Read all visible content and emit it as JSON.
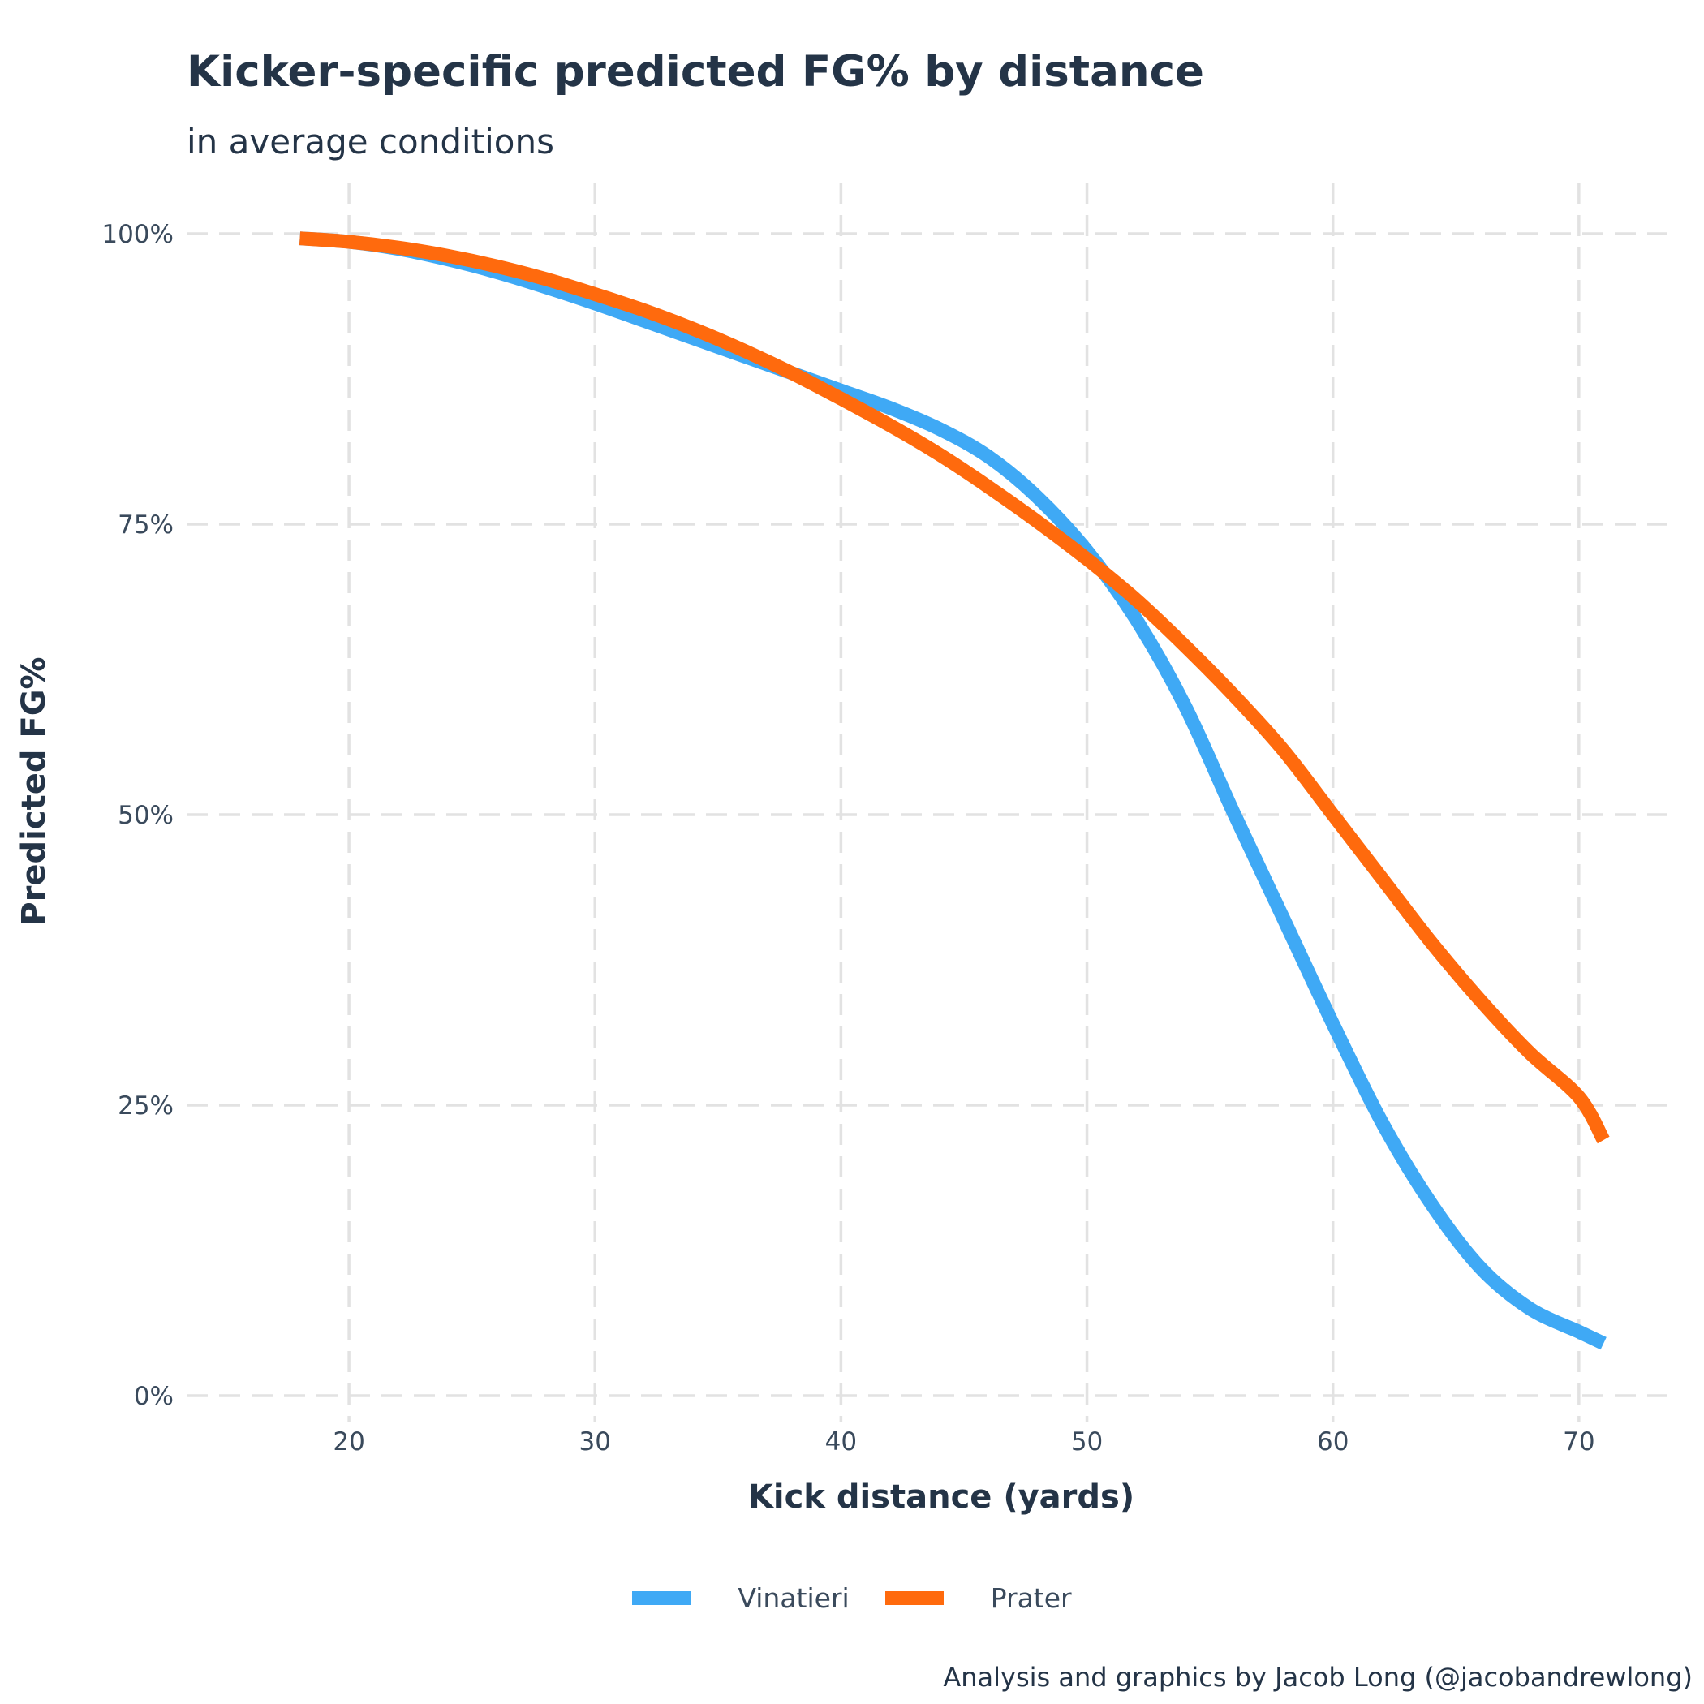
{
  "title": "Kicker-specific predicted FG% by distance",
  "subtitle": "in average conditions",
  "caption": "Analysis and graphics by Jacob Long (@jacobandrewlong)",
  "colors": {
    "Vinatieri": "#3FA9F5",
    "Prater": "#FF6A0D",
    "grid": "#E2E2E2",
    "text": "#243447"
  },
  "chart_data": {
    "type": "line",
    "title": "Kicker-specific predicted FG% by distance",
    "subtitle": "in average conditions",
    "xlabel": "Kick distance (yards)",
    "ylabel": "Predicted FG%",
    "xlim": [
      13.4,
      73.6
    ],
    "ylim": [
      0,
      1
    ],
    "x_ticks": [
      20,
      30,
      40,
      50,
      60,
      70
    ],
    "x_tick_labels": [
      "20",
      "30",
      "40",
      "50",
      "60",
      "70"
    ],
    "y_ticks": [
      0,
      0.25,
      0.5,
      0.75,
      1.0
    ],
    "y_tick_labels": [
      "0%",
      "25%",
      "50%",
      "75%",
      "100%"
    ],
    "grid": true,
    "legend_position": "bottom",
    "x": [
      18,
      20,
      22,
      24,
      26,
      28,
      30,
      32,
      34,
      36,
      38,
      40,
      42,
      44,
      46,
      48,
      50,
      52,
      54,
      56,
      58,
      60,
      62,
      64,
      66,
      68,
      70,
      71
    ],
    "series": [
      {
        "name": "Vinatieri",
        "values": [
          0.996,
          0.993,
          0.987,
          0.978,
          0.967,
          0.954,
          0.94,
          0.925,
          0.91,
          0.895,
          0.88,
          0.865,
          0.85,
          0.832,
          0.808,
          0.773,
          0.727,
          0.668,
          0.593,
          0.5,
          0.41,
          0.32,
          0.235,
          0.165,
          0.11,
          0.075,
          0.055,
          0.045
        ]
      },
      {
        "name": "Prater",
        "values": [
          0.996,
          0.993,
          0.988,
          0.981,
          0.972,
          0.961,
          0.948,
          0.934,
          0.918,
          0.9,
          0.88,
          0.858,
          0.835,
          0.81,
          0.782,
          0.752,
          0.72,
          0.685,
          0.645,
          0.602,
          0.555,
          0.5,
          0.445,
          0.39,
          0.34,
          0.295,
          0.257,
          0.22
        ]
      }
    ]
  }
}
